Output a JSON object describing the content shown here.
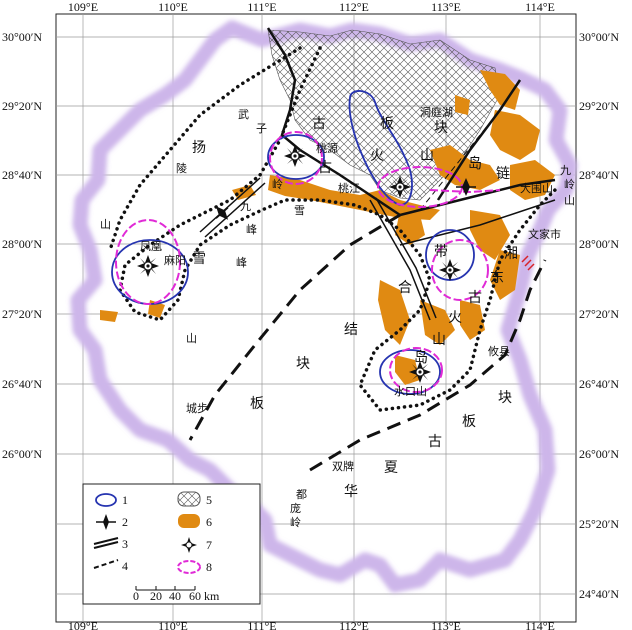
{
  "map": {
    "lon_labels": [
      "109°E",
      "110°E",
      "111°E",
      "112°E",
      "113°E",
      "114°E"
    ],
    "lat_labels_left": [
      "30°00′N",
      "29°20′N",
      "28°40′N",
      "28°00′N",
      "27°20′N",
      "26°40′N",
      "26°00′N"
    ],
    "lat_labels_right": [
      "30°00′N",
      "29°20′N",
      "28°40′N",
      "28°00′N",
      "27°20′N",
      "26°40′N",
      "26°00′N",
      "25°20′N",
      "24°40′N"
    ],
    "colors": {
      "province_glow": "#cdb6ea",
      "province_edge": "#8c6bb8",
      "orange_rock": "#e08a12",
      "blue_line": "#2634b0",
      "magenta_line": "#e02ad6",
      "grid": "#9a9a9a",
      "red_marks": "#d8232a"
    },
    "places": {
      "wuling": "武",
      "zi": "子",
      "yang": "扬",
      "ling": "陵",
      "shan_w": "山",
      "jiu": "九",
      "feng": "峰",
      "feng2": "峰",
      "xue": "雪",
      "xue2": "雪",
      "lingn": "岭",
      "fenghuang": "凤凰",
      "mayang": "麻阳",
      "shan_c": "山",
      "taoyuan": "桃源",
      "taojiang": "桃江",
      "gu1": "古",
      "gu2": "古",
      "ban": "板",
      "kuai": "块",
      "huo": "火",
      "shan2": "山",
      "dongtinghu": "洞庭湖",
      "dao1": "岛",
      "lian": "链",
      "jiuling": "九",
      "ling2": "岭",
      "shan3": "山",
      "damuishan": "大围山",
      "wenjiashi": "文家市",
      "xiang": "湘",
      "dong": "东",
      "dai": "带",
      "gu3": "古",
      "he": "合",
      "huo2": "火",
      "shan4": "山",
      "dao2": "岛",
      "youxian": "攸县",
      "shuikoushan": "水口山",
      "jie": "结",
      "kuai2": "块",
      "ban2": "板",
      "kuai3": "块",
      "chengbu": "城步",
      "ban3": "板",
      "gu4": "古",
      "xia": "夏",
      "shuangpai": "双牌",
      "hua": "华",
      "dou": "都",
      "pang": "庞",
      "ling3": "岭"
    },
    "legend": {
      "items": [
        {
          "num": "1",
          "icon": "blue-ellipse"
        },
        {
          "num": "2",
          "icon": "volcano-symbol"
        },
        {
          "num": "3",
          "icon": "double-line"
        },
        {
          "num": "4",
          "icon": "dashed-double-line"
        },
        {
          "num": "5",
          "icon": "crosshatch-swatch"
        },
        {
          "num": "6",
          "icon": "orange-swatch"
        },
        {
          "num": "7",
          "icon": "star-burst"
        },
        {
          "num": "8",
          "icon": "magenta-ellipse"
        }
      ],
      "scale_ticks": [
        "0",
        "20",
        "40",
        "60"
      ],
      "scale_unit": "km"
    }
  }
}
